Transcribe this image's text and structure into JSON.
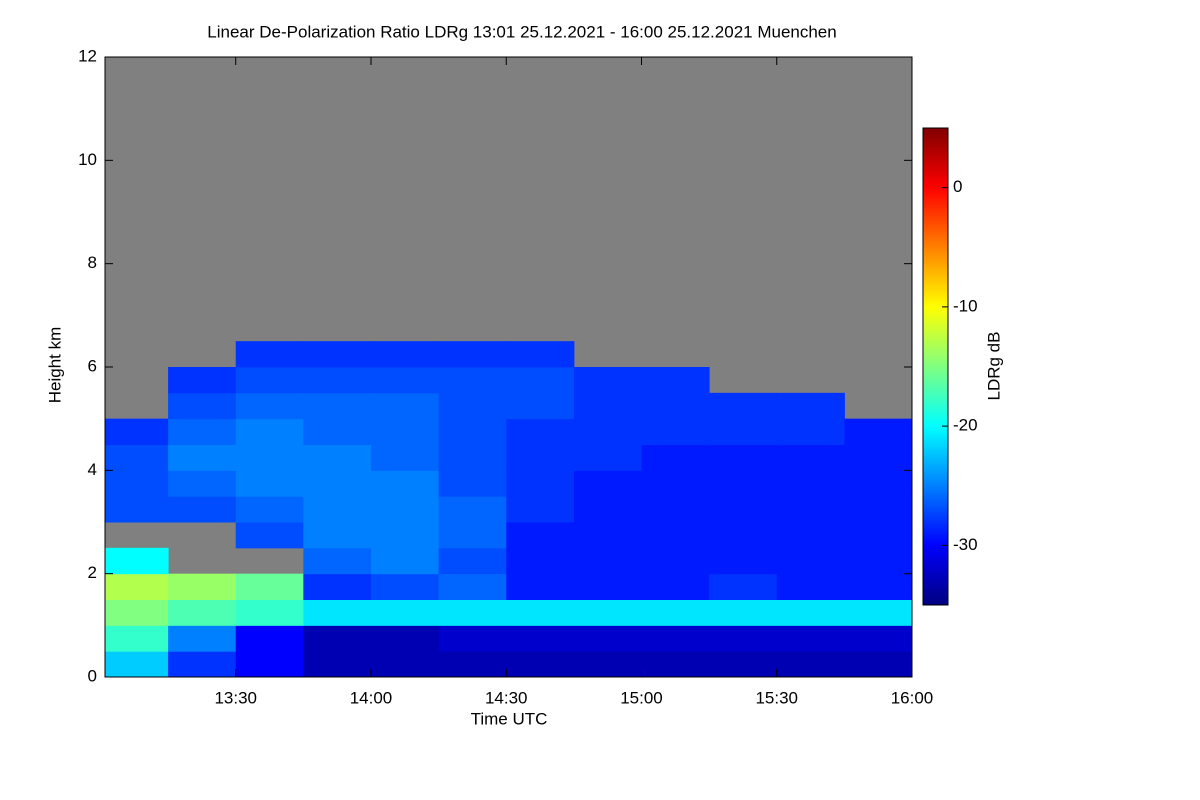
{
  "chart_data": {
    "type": "heatmap",
    "title": "Linear De-Polarization Ratio LDRg   13:01 25.12.2021 - 16:00 25.12.2021 Muenchen",
    "x_label": "Time UTC",
    "y_label": "Height km",
    "colorbar_label": "LDRg dB",
    "xlim": [
      13.0167,
      16.0
    ],
    "xticks": [
      {
        "value": 13.5,
        "label": "13:30"
      },
      {
        "value": 14.0,
        "label": "14:00"
      },
      {
        "value": 14.5,
        "label": "14:30"
      },
      {
        "value": 15.0,
        "label": "15:00"
      },
      {
        "value": 15.5,
        "label": "15:30"
      },
      {
        "value": 16.0,
        "label": "16:00"
      }
    ],
    "ylim": [
      0,
      12
    ],
    "yticks": [
      0,
      2,
      4,
      6,
      8,
      10,
      12
    ],
    "clim": [
      -35,
      5
    ],
    "cticks": [
      0,
      -10,
      -20,
      -30
    ],
    "colormap": [
      "#000080",
      "#0000ff",
      "#0080ff",
      "#00ffff",
      "#80ff80",
      "#ffff00",
      "#ff8000",
      "#ff0000",
      "#800000"
    ],
    "nodata_color": "#808080",
    "x_edges": [
      13.0,
      13.25,
      13.5,
      13.75,
      14.0,
      14.25,
      14.5,
      14.75,
      15.0,
      15.25,
      15.5,
      15.75,
      16.0
    ],
    "y_edges": [
      0,
      0.5,
      1.0,
      1.5,
      2.0,
      2.5,
      3.0,
      3.5,
      4.0,
      4.5,
      5.0,
      5.5,
      6.0,
      6.5
    ],
    "values": [
      [
        -22,
        -28,
        -30,
        -33,
        -33,
        -33,
        -33,
        -33,
        -33,
        -33,
        -33,
        -33
      ],
      [
        -18,
        -25,
        -30,
        -33,
        -33,
        -32,
        -32,
        -32,
        -32,
        -32,
        -32,
        -32
      ],
      [
        -15,
        -17,
        -18,
        -21,
        -21,
        -21,
        -21,
        -21,
        -21,
        -21,
        -21,
        -21
      ],
      [
        -13,
        -14,
        -16,
        -28,
        -27,
        -26,
        -29,
        -29,
        -29,
        -28,
        -29,
        -29
      ],
      [
        -20,
        null,
        null,
        -26,
        -25,
        -27,
        -29,
        -29,
        -29,
        -29,
        -29,
        -29
      ],
      [
        null,
        null,
        -27,
        -25,
        -25,
        -26,
        -29,
        -29,
        -29,
        -29,
        -29,
        -29
      ],
      [
        -27,
        -27,
        -26,
        -25,
        -25,
        -26,
        -28,
        -29,
        -29,
        -29,
        -29,
        -29
      ],
      [
        -27,
        -26,
        -25,
        -25,
        -25,
        -27,
        -28,
        -29,
        -29,
        -29,
        -29,
        -29
      ],
      [
        -27,
        -25,
        -25,
        -25,
        -26,
        -27,
        -28,
        -28,
        -29,
        -29,
        -29,
        -29
      ],
      [
        -28,
        -26,
        -25,
        -26,
        -26,
        -27,
        -28,
        -28,
        -28,
        -28,
        -28,
        -29
      ],
      [
        null,
        -27,
        -26,
        -26,
        -26,
        -27,
        -27,
        -28,
        -28,
        -28,
        -28,
        null
      ],
      [
        null,
        -28,
        -27,
        -27,
        -27,
        -27,
        -27,
        -28,
        -28,
        null,
        null,
        null
      ],
      [
        null,
        null,
        -28,
        -28,
        -28,
        -28,
        -28,
        null,
        null,
        null,
        null,
        null
      ]
    ]
  }
}
